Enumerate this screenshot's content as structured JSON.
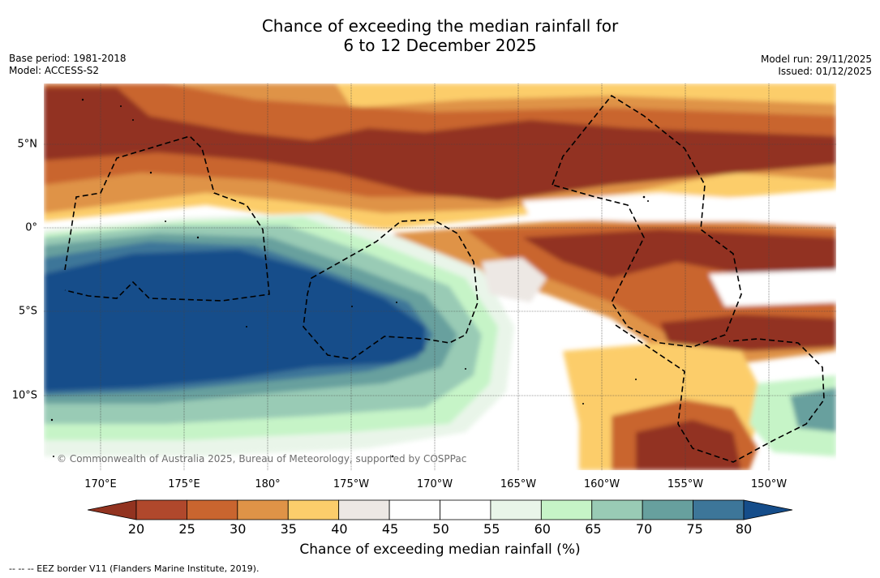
{
  "title": {
    "line1": "Chance of exceeding the median rainfall for",
    "line2": "6 to 12 December 2025"
  },
  "meta": {
    "base_period": "Base period: 1981-2018",
    "model": "Model: ACCESS-S2",
    "model_run": "Model run: 29/11/2025",
    "issued": "Issued: 01/12/2025"
  },
  "credit": "© Commonwealth of Australia 2025, Bureau of Meteorology, supported by COSPPac",
  "footnote": "--  --  -- EEZ border V11 (Flanders Marine Institute, 2019).",
  "map": {
    "lon_labels": [
      "170°E",
      "175°E",
      "180°",
      "175°W",
      "170°W",
      "165°W",
      "160°W",
      "155°W",
      "150°W"
    ],
    "lat_labels": [
      "5°N",
      "0°",
      "5°S",
      "10°S"
    ],
    "lon_values": [
      170,
      175,
      180,
      185,
      190,
      195,
      200,
      205,
      210
    ],
    "lat_values": [
      5,
      0,
      -5,
      -10
    ],
    "lon_range": [
      166.7,
      214.2
    ],
    "lat_range": [
      -14.5,
      8.6
    ]
  },
  "colorbar": {
    "label": "Chance of exceeding median rainfall (%)",
    "ticks": [
      "20",
      "25",
      "30",
      "35",
      "40",
      "45",
      "50",
      "55",
      "60",
      "65",
      "70",
      "75",
      "80"
    ],
    "colors": [
      "#b0482c",
      "#c9652f",
      "#df9347",
      "#fccd6b",
      "#ede8e4",
      "#ffffff",
      "#ffffff",
      "#e9f5e9",
      "#c6f4c7",
      "#99cbb5",
      "#67a09e",
      "#3d7699"
    ],
    "under_color": "#923320",
    "over_color": "#154d8a"
  },
  "colors": {
    "dry_extreme": "#923320",
    "dry": "#b0482c",
    "dry_moderate": "#c9652f",
    "dry_light": "#df9347",
    "dry_slight": "#fccd6b",
    "neutral_low": "#ede8e4",
    "neutral": "#ffffff",
    "wet_slight": "#e9f5e9",
    "wet_light": "#c6f4c7",
    "wet_moderate": "#99cbb5",
    "wet": "#67a09e",
    "wet_strong": "#3d7699",
    "wet_extreme": "#154d8a"
  }
}
